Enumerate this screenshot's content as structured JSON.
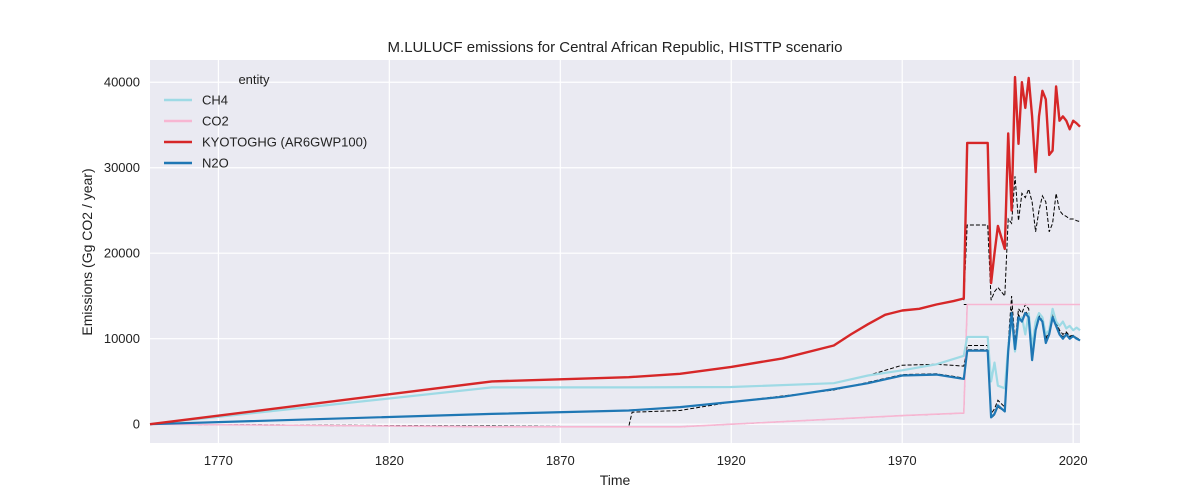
{
  "chart_data": {
    "type": "line",
    "title": "M.LULUCF emissions for Central African Republic, HISTTP scenario",
    "xlabel": "Time",
    "ylabel": "Emissions (Gg CO2 / year)",
    "xlim": [
      1750,
      2022
    ],
    "ylim": [
      -2200,
      42600
    ],
    "xticks": [
      1770,
      1820,
      1870,
      1920,
      1970,
      2020
    ],
    "yticks": [
      0,
      10000,
      20000,
      30000,
      40000
    ],
    "grid": true,
    "legend": {
      "title": "entity",
      "position": "top-left"
    },
    "colors": {
      "background": "#eaeaf2",
      "grid": "#ffffff",
      "CH4": "#9edae5",
      "CO2": "#f7b6d2",
      "KYOTOGHG": "#d62728",
      "N2O": "#1f77b4",
      "reference": "#000000"
    },
    "series": [
      {
        "name": "CH4",
        "color": "#9edae5",
        "points": [
          [
            1750,
            0
          ],
          [
            1850,
            4300
          ],
          [
            1890,
            4300
          ],
          [
            1920,
            4350
          ],
          [
            1950,
            4800
          ],
          [
            1960,
            5700
          ],
          [
            1970,
            6300
          ],
          [
            1980,
            7000
          ],
          [
            1988,
            8000
          ],
          [
            1989,
            10200
          ],
          [
            1995,
            10200
          ],
          [
            1996,
            5000
          ],
          [
            1997,
            7200
          ],
          [
            1998,
            4500
          ],
          [
            2000,
            4200
          ],
          [
            2001,
            9000
          ],
          [
            2002,
            12500
          ],
          [
            2003,
            8500
          ],
          [
            2004,
            12000
          ],
          [
            2005,
            12500
          ],
          [
            2006,
            10500
          ],
          [
            2007,
            13000
          ],
          [
            2008,
            9000
          ],
          [
            2009,
            12000
          ],
          [
            2010,
            13000
          ],
          [
            2011,
            12500
          ],
          [
            2012,
            10500
          ],
          [
            2013,
            11000
          ],
          [
            2014,
            13500
          ],
          [
            2015,
            12000
          ],
          [
            2016,
            11500
          ],
          [
            2017,
            12000
          ],
          [
            2018,
            11200
          ],
          [
            2019,
            11500
          ],
          [
            2020,
            11000
          ],
          [
            2021,
            11300
          ],
          [
            2022,
            11000
          ]
        ]
      },
      {
        "name": "CO2",
        "color": "#f7b6d2",
        "points": [
          [
            1750,
            0
          ],
          [
            1850,
            -300
          ],
          [
            1905,
            -300
          ],
          [
            1920,
            0
          ],
          [
            1950,
            600
          ],
          [
            1970,
            1000
          ],
          [
            1988,
            1300
          ],
          [
            1989,
            14000
          ],
          [
            2022,
            14000
          ]
        ]
      },
      {
        "name": "KYOTOGHG (AR6GWP100)",
        "color": "#d62728",
        "points": [
          [
            1750,
            0
          ],
          [
            1850,
            5000
          ],
          [
            1890,
            5500
          ],
          [
            1905,
            5900
          ],
          [
            1920,
            6700
          ],
          [
            1935,
            7700
          ],
          [
            1950,
            9200
          ],
          [
            1955,
            10500
          ],
          [
            1960,
            11700
          ],
          [
            1965,
            12800
          ],
          [
            1970,
            13300
          ],
          [
            1975,
            13500
          ],
          [
            1980,
            14000
          ],
          [
            1985,
            14400
          ],
          [
            1988,
            14700
          ],
          [
            1989,
            32900
          ],
          [
            1995,
            32900
          ],
          [
            1996,
            16500
          ],
          [
            1997,
            20000
          ],
          [
            1998,
            23200
          ],
          [
            2000,
            20500
          ],
          [
            2001,
            34000
          ],
          [
            2002,
            25000
          ],
          [
            2003,
            40600
          ],
          [
            2004,
            32800
          ],
          [
            2005,
            40000
          ],
          [
            2006,
            37000
          ],
          [
            2007,
            40500
          ],
          [
            2008,
            36000
          ],
          [
            2009,
            29500
          ],
          [
            2010,
            36000
          ],
          [
            2011,
            39000
          ],
          [
            2012,
            38000
          ],
          [
            2013,
            31500
          ],
          [
            2014,
            32000
          ],
          [
            2015,
            39500
          ],
          [
            2016,
            35500
          ],
          [
            2017,
            36000
          ],
          [
            2018,
            35500
          ],
          [
            2019,
            34500
          ],
          [
            2020,
            35500
          ],
          [
            2021,
            35200
          ],
          [
            2022,
            34800
          ]
        ]
      },
      {
        "name": "N2O",
        "color": "#1f77b4",
        "points": [
          [
            1750,
            0
          ],
          [
            1850,
            1200
          ],
          [
            1890,
            1600
          ],
          [
            1905,
            2000
          ],
          [
            1920,
            2600
          ],
          [
            1935,
            3200
          ],
          [
            1950,
            4100
          ],
          [
            1960,
            4800
          ],
          [
            1970,
            5700
          ],
          [
            1980,
            5800
          ],
          [
            1988,
            5300
          ],
          [
            1989,
            8600
          ],
          [
            1995,
            8600
          ],
          [
            1996,
            800
          ],
          [
            1997,
            1200
          ],
          [
            1998,
            2200
          ],
          [
            2000,
            1500
          ],
          [
            2001,
            8500
          ],
          [
            2002,
            13000
          ],
          [
            2003,
            8800
          ],
          [
            2004,
            12500
          ],
          [
            2005,
            12000
          ],
          [
            2006,
            13000
          ],
          [
            2007,
            12500
          ],
          [
            2008,
            7500
          ],
          [
            2009,
            11000
          ],
          [
            2010,
            12500
          ],
          [
            2011,
            12000
          ],
          [
            2012,
            9500
          ],
          [
            2013,
            10500
          ],
          [
            2014,
            12500
          ],
          [
            2015,
            11500
          ],
          [
            2016,
            10500
          ],
          [
            2017,
            10000
          ],
          [
            2018,
            10500
          ],
          [
            2019,
            10000
          ],
          [
            2020,
            10300
          ],
          [
            2021,
            10000
          ],
          [
            2022,
            9800
          ]
        ]
      }
    ],
    "reference_lines": [
      {
        "name": "reference-upper",
        "points": [
          [
            1988,
            14500
          ],
          [
            1989,
            23300
          ],
          [
            1995,
            23300
          ],
          [
            1996,
            14500
          ],
          [
            1997,
            15500
          ],
          [
            1998,
            16000
          ],
          [
            2000,
            15000
          ],
          [
            2001,
            24000
          ],
          [
            2002,
            23500
          ],
          [
            2003,
            29000
          ],
          [
            2004,
            23800
          ],
          [
            2005,
            27000
          ],
          [
            2006,
            26500
          ],
          [
            2007,
            27500
          ],
          [
            2008,
            26000
          ],
          [
            2009,
            22500
          ],
          [
            2010,
            25000
          ],
          [
            2011,
            26700
          ],
          [
            2012,
            26000
          ],
          [
            2013,
            22500
          ],
          [
            2014,
            23500
          ],
          [
            2015,
            27000
          ],
          [
            2016,
            25000
          ],
          [
            2017,
            24500
          ],
          [
            2018,
            24300
          ],
          [
            2019,
            24000
          ],
          [
            2020,
            24000
          ],
          [
            2021,
            23800
          ],
          [
            2022,
            23700
          ]
        ]
      },
      {
        "name": "reference-flat",
        "points": [
          [
            1988,
            14000
          ],
          [
            2022,
            14000
          ]
        ]
      },
      {
        "name": "reference-mid",
        "points": [
          [
            1750,
            0
          ],
          [
            1850,
            4300
          ],
          [
            1890,
            4300
          ],
          [
            1920,
            4350
          ],
          [
            1950,
            4800
          ],
          [
            1960,
            5700
          ],
          [
            1970,
            6900
          ],
          [
            1980,
            7000
          ],
          [
            1988,
            6800
          ],
          [
            1989,
            9200
          ],
          [
            1995,
            9200
          ],
          [
            1996,
            1200
          ],
          [
            1997,
            1800
          ],
          [
            1998,
            2800
          ],
          [
            2000,
            2000
          ],
          [
            2001,
            9500
          ],
          [
            2002,
            15000
          ],
          [
            2003,
            9500
          ],
          [
            2004,
            13500
          ],
          [
            2005,
            13000
          ],
          [
            2006,
            14000
          ],
          [
            2007,
            13500
          ],
          [
            2008,
            8000
          ],
          [
            2009,
            12000
          ],
          [
            2010,
            13000
          ],
          [
            2011,
            12500
          ],
          [
            2012,
            10000
          ],
          [
            2013,
            11000
          ],
          [
            2014,
            13000
          ],
          [
            2015,
            12000
          ],
          [
            2016,
            11000
          ],
          [
            2017,
            10500
          ],
          [
            2018,
            10800
          ],
          [
            2019,
            10300
          ],
          [
            2020,
            10400
          ],
          [
            2021,
            10100
          ],
          [
            2022,
            9900
          ]
        ]
      },
      {
        "name": "reference-low",
        "points": [
          [
            1750,
            0
          ],
          [
            1890,
            -300
          ],
          [
            1891,
            1400
          ],
          [
            1905,
            1600
          ],
          [
            1920,
            2600
          ],
          [
            1950,
            4000
          ],
          [
            1970,
            5800
          ],
          [
            1980,
            5900
          ],
          [
            1988,
            5400
          ],
          [
            1989,
            8700
          ],
          [
            1995,
            8700
          ],
          [
            1996,
            700
          ],
          [
            1997,
            1100
          ],
          [
            1998,
            2000
          ],
          [
            2000,
            1500
          ],
          [
            2001,
            8500
          ],
          [
            2002,
            13500
          ],
          [
            2003,
            9000
          ],
          [
            2004,
            12800
          ],
          [
            2005,
            12200
          ],
          [
            2006,
            13200
          ],
          [
            2007,
            12700
          ],
          [
            2008,
            7600
          ],
          [
            2009,
            11200
          ],
          [
            2010,
            12700
          ],
          [
            2011,
            12200
          ],
          [
            2012,
            9700
          ],
          [
            2013,
            10700
          ],
          [
            2014,
            12700
          ],
          [
            2015,
            11700
          ],
          [
            2016,
            10700
          ],
          [
            2017,
            10200
          ],
          [
            2018,
            10700
          ],
          [
            2019,
            10200
          ],
          [
            2020,
            10300
          ],
          [
            2021,
            10000
          ],
          [
            2022,
            9800
          ]
        ]
      },
      {
        "name": "reference-bottom",
        "points": [
          [
            1750,
            0
          ],
          [
            1850,
            -300
          ],
          [
            1905,
            -300
          ],
          [
            1920,
            0
          ],
          [
            1950,
            600
          ],
          [
            1970,
            1000
          ],
          [
            1988,
            1300
          ],
          [
            1989,
            14000
          ],
          [
            2022,
            14000
          ]
        ]
      }
    ]
  }
}
